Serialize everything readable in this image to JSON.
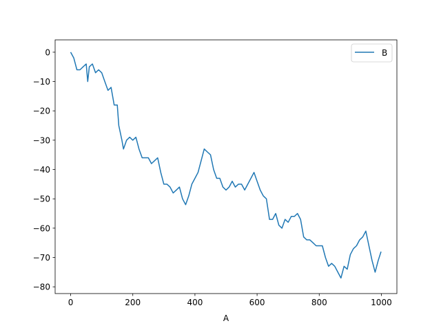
{
  "chart_data": {
    "type": "line",
    "title": "",
    "xlabel": "A",
    "ylabel": "",
    "xlim": [
      -50,
      1050
    ],
    "ylim": [
      -82.3,
      4.2
    ],
    "xticks": [
      0,
      200,
      400,
      600,
      800,
      1000
    ],
    "yticks": [
      0,
      -10,
      -20,
      -30,
      -40,
      -50,
      -60,
      -70,
      -80
    ],
    "grid": false,
    "legend": {
      "placement": "top-right"
    },
    "series": [
      {
        "name": "B",
        "color": "#1f77b4",
        "x": [
          0,
          10,
          20,
          30,
          40,
          50,
          55,
          60,
          70,
          80,
          90,
          100,
          110,
          120,
          130,
          140,
          150,
          155,
          165,
          170,
          180,
          190,
          200,
          210,
          220,
          230,
          250,
          260,
          270,
          280,
          290,
          300,
          310,
          320,
          330,
          340,
          350,
          360,
          370,
          380,
          390,
          400,
          410,
          420,
          430,
          440,
          450,
          460,
          470,
          480,
          490,
          500,
          510,
          520,
          530,
          540,
          550,
          560,
          570,
          580,
          590,
          600,
          610,
          620,
          630,
          640,
          650,
          660,
          670,
          680,
          690,
          700,
          710,
          720,
          730,
          740,
          750,
          760,
          770,
          780,
          790,
          800,
          810,
          820,
          830,
          840,
          850,
          860,
          870,
          880,
          890,
          900,
          910,
          920,
          930,
          940,
          950,
          960,
          970,
          980,
          990,
          999
        ],
        "y": [
          0,
          -2,
          -6,
          -6,
          -5,
          -4,
          -10,
          -5,
          -4,
          -7,
          -6,
          -7,
          -10,
          -13,
          -12,
          -18,
          -18,
          -25,
          -30,
          -33,
          -30,
          -29,
          -30,
          -29,
          -33,
          -36,
          -36,
          -38,
          -37,
          -36,
          -41,
          -45,
          -45,
          -46,
          -48,
          -47,
          -46,
          -50,
          -52,
          -49,
          -45,
          -43,
          -41,
          -37,
          -33,
          -34,
          -35,
          -40,
          -43,
          -43,
          -46,
          -47,
          -46,
          -44,
          -46,
          -45,
          -45,
          -47,
          -45,
          -43,
          -41,
          -44,
          -47,
          -49,
          -50,
          -57,
          -57,
          -55,
          -59,
          -60,
          -57,
          -58,
          -56,
          -56,
          -55,
          -57,
          -63,
          -64,
          -64,
          -65,
          -66,
          -66,
          -66,
          -70,
          -73,
          -72,
          -73,
          -75,
          -77,
          -73,
          -74,
          -69,
          -67,
          -66,
          -64,
          -63,
          -61,
          -66,
          -71,
          -75,
          -71,
          -68
        ]
      }
    ]
  }
}
